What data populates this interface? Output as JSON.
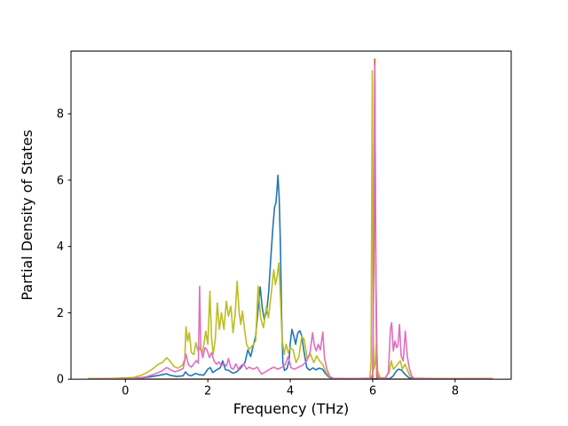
{
  "chart_data": {
    "type": "line",
    "title": "",
    "xlabel": "Frequency (THz)",
    "ylabel": "Partial Density of States",
    "xlim": [
      -1.32,
      9.36
    ],
    "ylim": [
      0,
      9.89
    ],
    "xticks": [
      0,
      2,
      4,
      6,
      8
    ],
    "yticks": [
      0,
      2,
      4,
      6,
      8
    ],
    "grid": false,
    "legend": "none",
    "background": "#ffffff",
    "spine_color": "#000000",
    "series": [
      {
        "name": "series-1-blue",
        "color": "#1f77b4",
        "points": [
          [
            -0.9,
            0.0
          ],
          [
            -0.4,
            0.01
          ],
          [
            0.1,
            0.02
          ],
          [
            0.4,
            0.04
          ],
          [
            0.6,
            0.07
          ],
          [
            0.8,
            0.11
          ],
          [
            1.0,
            0.16
          ],
          [
            1.1,
            0.11
          ],
          [
            1.25,
            0.08
          ],
          [
            1.4,
            0.1
          ],
          [
            1.46,
            0.22
          ],
          [
            1.52,
            0.13
          ],
          [
            1.6,
            0.1
          ],
          [
            1.7,
            0.17
          ],
          [
            1.8,
            0.13
          ],
          [
            1.9,
            0.12
          ],
          [
            2.0,
            0.3
          ],
          [
            2.06,
            0.35
          ],
          [
            2.12,
            0.2
          ],
          [
            2.2,
            0.27
          ],
          [
            2.3,
            0.34
          ],
          [
            2.36,
            0.55
          ],
          [
            2.43,
            0.28
          ],
          [
            2.5,
            0.27
          ],
          [
            2.6,
            0.18
          ],
          [
            2.7,
            0.22
          ],
          [
            2.8,
            0.34
          ],
          [
            2.9,
            0.5
          ],
          [
            2.97,
            0.88
          ],
          [
            3.04,
            0.68
          ],
          [
            3.1,
            1.0
          ],
          [
            3.16,
            1.3
          ],
          [
            3.22,
            2.1
          ],
          [
            3.27,
            2.78
          ],
          [
            3.32,
            2.15
          ],
          [
            3.37,
            1.8
          ],
          [
            3.43,
            2.05
          ],
          [
            3.48,
            2.7
          ],
          [
            3.53,
            3.7
          ],
          [
            3.58,
            4.6
          ],
          [
            3.62,
            5.2
          ],
          [
            3.65,
            5.3
          ],
          [
            3.68,
            5.75
          ],
          [
            3.7,
            6.15
          ],
          [
            3.73,
            5.5
          ],
          [
            3.76,
            4.1
          ],
          [
            3.79,
            1.9
          ],
          [
            3.82,
            0.5
          ],
          [
            3.86,
            0.26
          ],
          [
            3.92,
            0.32
          ],
          [
            3.97,
            0.55
          ],
          [
            4.0,
            1.1
          ],
          [
            4.04,
            1.5
          ],
          [
            4.09,
            1.28
          ],
          [
            4.13,
            1.05
          ],
          [
            4.18,
            1.38
          ],
          [
            4.23,
            1.46
          ],
          [
            4.28,
            1.3
          ],
          [
            4.33,
            0.85
          ],
          [
            4.4,
            0.35
          ],
          [
            4.47,
            0.27
          ],
          [
            4.55,
            0.34
          ],
          [
            4.62,
            0.28
          ],
          [
            4.7,
            0.33
          ],
          [
            4.78,
            0.3
          ],
          [
            4.85,
            0.18
          ],
          [
            4.92,
            0.08
          ],
          [
            5.0,
            0.02
          ],
          [
            5.5,
            0.01
          ],
          [
            6.0,
            0.01
          ],
          [
            6.42,
            0.02
          ],
          [
            6.5,
            0.1
          ],
          [
            6.57,
            0.24
          ],
          [
            6.63,
            0.3
          ],
          [
            6.7,
            0.27
          ],
          [
            6.78,
            0.15
          ],
          [
            6.88,
            0.04
          ],
          [
            7.0,
            0.01
          ],
          [
            8.9,
            0.01
          ]
        ]
      },
      {
        "name": "series-2-orange",
        "color": "#d8562c",
        "points": [
          [
            -0.9,
            0.0
          ],
          [
            5.9,
            0.0
          ],
          [
            6.0,
            0.05
          ],
          [
            6.03,
            4.0
          ],
          [
            6.05,
            9.65
          ],
          [
            6.07,
            4.0
          ],
          [
            6.1,
            0.05
          ],
          [
            6.2,
            0.0
          ],
          [
            8.9,
            0.0
          ]
        ]
      },
      {
        "name": "series-3-olive",
        "color": "#bcbd22",
        "points": [
          [
            -0.9,
            0.02
          ],
          [
            -0.4,
            0.02
          ],
          [
            0.0,
            0.04
          ],
          [
            0.2,
            0.05
          ],
          [
            0.35,
            0.1
          ],
          [
            0.5,
            0.18
          ],
          [
            0.65,
            0.3
          ],
          [
            0.8,
            0.45
          ],
          [
            0.9,
            0.5
          ],
          [
            1.0,
            0.65
          ],
          [
            1.08,
            0.55
          ],
          [
            1.18,
            0.38
          ],
          [
            1.28,
            0.33
          ],
          [
            1.38,
            0.42
          ],
          [
            1.44,
            0.6
          ],
          [
            1.47,
            1.58
          ],
          [
            1.51,
            1.15
          ],
          [
            1.55,
            1.4
          ],
          [
            1.6,
            0.8
          ],
          [
            1.66,
            0.74
          ],
          [
            1.71,
            1.1
          ],
          [
            1.76,
            0.85
          ],
          [
            1.81,
            0.95
          ],
          [
            1.86,
            0.78
          ],
          [
            1.91,
            1.1
          ],
          [
            1.95,
            1.45
          ],
          [
            2.0,
            1.05
          ],
          [
            2.05,
            2.65
          ],
          [
            2.09,
            1.25
          ],
          [
            2.13,
            0.75
          ],
          [
            2.18,
            1.2
          ],
          [
            2.23,
            2.3
          ],
          [
            2.28,
            1.5
          ],
          [
            2.33,
            2.0
          ],
          [
            2.39,
            1.5
          ],
          [
            2.45,
            2.35
          ],
          [
            2.5,
            1.9
          ],
          [
            2.56,
            2.2
          ],
          [
            2.61,
            1.4
          ],
          [
            2.66,
            1.9
          ],
          [
            2.71,
            2.95
          ],
          [
            2.76,
            2.0
          ],
          [
            2.8,
            1.65
          ],
          [
            2.84,
            2.05
          ],
          [
            2.89,
            1.5
          ],
          [
            2.94,
            1.05
          ],
          [
            3.0,
            0.9
          ],
          [
            3.08,
            1.0
          ],
          [
            3.16,
            1.15
          ],
          [
            3.22,
            2.8
          ],
          [
            3.28,
            1.85
          ],
          [
            3.35,
            1.55
          ],
          [
            3.42,
            2.2
          ],
          [
            3.47,
            1.85
          ],
          [
            3.54,
            2.6
          ],
          [
            3.6,
            3.3
          ],
          [
            3.64,
            2.85
          ],
          [
            3.68,
            3.1
          ],
          [
            3.72,
            3.5
          ],
          [
            3.76,
            2.5
          ],
          [
            3.8,
            1.25
          ],
          [
            3.85,
            0.75
          ],
          [
            3.9,
            1.05
          ],
          [
            3.95,
            0.8
          ],
          [
            4.0,
            0.95
          ],
          [
            4.07,
            0.88
          ],
          [
            4.14,
            0.5
          ],
          [
            4.21,
            0.68
          ],
          [
            4.28,
            1.3
          ],
          [
            4.34,
            1.18
          ],
          [
            4.41,
            0.62
          ],
          [
            4.49,
            0.75
          ],
          [
            4.57,
            0.5
          ],
          [
            4.64,
            0.7
          ],
          [
            4.71,
            0.55
          ],
          [
            4.79,
            0.44
          ],
          [
            4.87,
            0.2
          ],
          [
            4.95,
            0.08
          ],
          [
            5.05,
            0.02
          ],
          [
            5.5,
            0.02
          ],
          [
            5.93,
            0.02
          ],
          [
            5.96,
            0.5
          ],
          [
            5.99,
            9.3
          ],
          [
            6.01,
            1.5
          ],
          [
            6.03,
            0.3
          ],
          [
            6.06,
            0.45
          ],
          [
            6.09,
            1.2
          ],
          [
            6.12,
            0.25
          ],
          [
            6.18,
            0.04
          ],
          [
            6.3,
            0.04
          ],
          [
            6.4,
            0.2
          ],
          [
            6.45,
            0.55
          ],
          [
            6.5,
            0.3
          ],
          [
            6.55,
            0.36
          ],
          [
            6.61,
            0.46
          ],
          [
            6.67,
            0.55
          ],
          [
            6.72,
            0.3
          ],
          [
            6.78,
            0.45
          ],
          [
            6.84,
            0.28
          ],
          [
            6.9,
            0.1
          ],
          [
            7.0,
            0.03
          ],
          [
            7.5,
            0.02
          ],
          [
            8.9,
            0.02
          ]
        ]
      },
      {
        "name": "series-4-pink",
        "color": "#e06fc0",
        "points": [
          [
            -0.9,
            0.0
          ],
          [
            0.0,
            0.01
          ],
          [
            0.3,
            0.03
          ],
          [
            0.5,
            0.07
          ],
          [
            0.65,
            0.13
          ],
          [
            0.8,
            0.2
          ],
          [
            0.9,
            0.26
          ],
          [
            1.0,
            0.35
          ],
          [
            1.1,
            0.28
          ],
          [
            1.2,
            0.22
          ],
          [
            1.3,
            0.26
          ],
          [
            1.4,
            0.32
          ],
          [
            1.47,
            0.75
          ],
          [
            1.53,
            0.44
          ],
          [
            1.6,
            0.36
          ],
          [
            1.66,
            0.46
          ],
          [
            1.72,
            0.56
          ],
          [
            1.77,
            0.48
          ],
          [
            1.8,
            2.8
          ],
          [
            1.83,
            0.9
          ],
          [
            1.88,
            0.65
          ],
          [
            1.93,
            0.95
          ],
          [
            1.98,
            0.88
          ],
          [
            2.04,
            0.65
          ],
          [
            2.09,
            0.8
          ],
          [
            2.15,
            0.55
          ],
          [
            2.21,
            0.45
          ],
          [
            2.27,
            0.52
          ],
          [
            2.33,
            0.4
          ],
          [
            2.39,
            0.46
          ],
          [
            2.45,
            0.4
          ],
          [
            2.5,
            0.62
          ],
          [
            2.56,
            0.34
          ],
          [
            2.62,
            0.3
          ],
          [
            2.68,
            0.46
          ],
          [
            2.74,
            0.3
          ],
          [
            2.8,
            0.4
          ],
          [
            2.87,
            0.46
          ],
          [
            2.94,
            0.3
          ],
          [
            3.0,
            0.36
          ],
          [
            3.1,
            0.3
          ],
          [
            3.2,
            0.36
          ],
          [
            3.3,
            0.15
          ],
          [
            3.4,
            0.22
          ],
          [
            3.5,
            0.3
          ],
          [
            3.6,
            0.36
          ],
          [
            3.7,
            0.3
          ],
          [
            3.8,
            0.36
          ],
          [
            3.88,
            0.45
          ],
          [
            3.95,
            0.68
          ],
          [
            4.02,
            0.34
          ],
          [
            4.1,
            0.3
          ],
          [
            4.2,
            0.36
          ],
          [
            4.3,
            0.42
          ],
          [
            4.4,
            0.55
          ],
          [
            4.48,
            0.8
          ],
          [
            4.54,
            1.4
          ],
          [
            4.58,
            1.05
          ],
          [
            4.63,
            0.85
          ],
          [
            4.68,
            1.05
          ],
          [
            4.73,
            0.88
          ],
          [
            4.79,
            1.42
          ],
          [
            4.83,
            0.65
          ],
          [
            4.89,
            0.3
          ],
          [
            4.96,
            0.08
          ],
          [
            5.05,
            0.02
          ],
          [
            5.5,
            0.01
          ],
          [
            5.95,
            0.03
          ],
          [
            6.0,
            0.15
          ],
          [
            6.03,
            5.5
          ],
          [
            6.05,
            9.45
          ],
          [
            6.08,
            3.0
          ],
          [
            6.11,
            0.15
          ],
          [
            6.16,
            0.03
          ],
          [
            6.3,
            0.03
          ],
          [
            6.38,
            0.2
          ],
          [
            6.43,
            1.5
          ],
          [
            6.46,
            1.7
          ],
          [
            6.5,
            0.85
          ],
          [
            6.54,
            1.15
          ],
          [
            6.58,
            0.95
          ],
          [
            6.61,
            1.0
          ],
          [
            6.65,
            1.65
          ],
          [
            6.69,
            0.7
          ],
          [
            6.74,
            0.55
          ],
          [
            6.79,
            1.45
          ],
          [
            6.84,
            0.68
          ],
          [
            6.89,
            0.32
          ],
          [
            6.95,
            0.08
          ],
          [
            7.02,
            0.02
          ],
          [
            7.5,
            0.01
          ],
          [
            8.9,
            0.01
          ]
        ]
      }
    ]
  }
}
